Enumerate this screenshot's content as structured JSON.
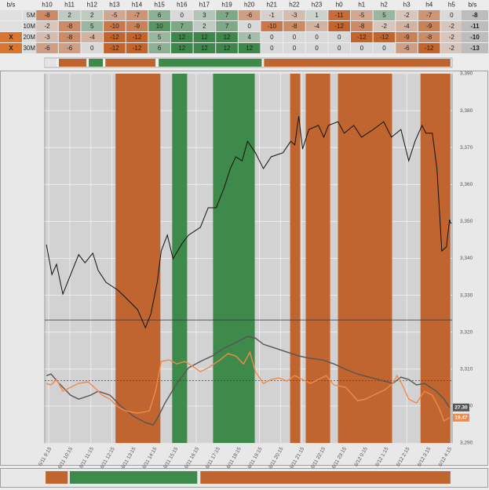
{
  "table": {
    "header": [
      "b/s",
      "h10",
      "h11",
      "h12",
      "h13",
      "h14",
      "h15",
      "h16",
      "h17",
      "h19",
      "h20",
      "h21",
      "h22",
      "h23",
      "h0",
      "h1",
      "h2",
      "h3",
      "h4",
      "h5",
      "b/s"
    ],
    "rows": [
      {
        "signal": null,
        "name": "5M",
        "values": [
          -8,
          2,
          2,
          -5,
          -7,
          6,
          0,
          3,
          7,
          -6,
          -1,
          -3,
          1,
          -11,
          -5,
          5,
          -2,
          -7,
          0
        ],
        "total": -8
      },
      {
        "signal": null,
        "name": "10M",
        "values": [
          -2,
          -8,
          5,
          -10,
          -9,
          10,
          7,
          2,
          7,
          0,
          -10,
          -8,
          -4,
          -12,
          -8,
          -2,
          -4,
          -9,
          -2
        ],
        "total": -11
      },
      {
        "signal": "X",
        "name": "20M",
        "values": [
          -3,
          -8,
          -4,
          -12,
          -12,
          5,
          12,
          12,
          12,
          4,
          0,
          0,
          0,
          0,
          -12,
          -12,
          -9,
          -8,
          -2
        ],
        "total": -10
      },
      {
        "signal": "X",
        "name": "30M",
        "values": [
          -6,
          -6,
          0,
          -12,
          -12,
          6,
          12,
          12,
          12,
          12,
          0,
          0,
          0,
          0,
          0,
          0,
          -6,
          -12,
          -2
        ],
        "total": -13
      }
    ]
  },
  "chart_data": {
    "type": "line",
    "xlim": [
      -0.19,
      19.15
    ],
    "xticks": [
      {
        "value": 0,
        "label": "6/11 9:15"
      },
      {
        "value": 1,
        "label": "6/11 10:15"
      },
      {
        "value": 2,
        "label": "6/11 11:15"
      },
      {
        "value": 3,
        "label": "6/11 12:15"
      },
      {
        "value": 4,
        "label": "6/11 13:15"
      },
      {
        "value": 5,
        "label": "6/11 14:15"
      },
      {
        "value": 6,
        "label": "6/11 15:15"
      },
      {
        "value": 7,
        "label": "6/11 16:15"
      },
      {
        "value": 8,
        "label": "6/11 17:15"
      },
      {
        "value": 9,
        "label": "6/11 18:15"
      },
      {
        "value": 10,
        "label": "6/11 19:15"
      },
      {
        "value": 11,
        "label": "6/11 20:15"
      },
      {
        "value": 12,
        "label": "6/11 21:15"
      },
      {
        "value": 13,
        "label": "6/11 22:15"
      },
      {
        "value": 14,
        "label": "6/11 23:15"
      },
      {
        "value": 15,
        "label": "6/12 0:15"
      },
      {
        "value": 16,
        "label": "6/12 1:15"
      },
      {
        "value": 17,
        "label": "6/12 2:15"
      },
      {
        "value": 18,
        "label": "6/12 3:15"
      },
      {
        "value": 19,
        "label": "6/12 4:15"
      }
    ],
    "ylim": [
      3290,
      3390
    ],
    "yticks": [
      {
        "value": 3290,
        "label": "3,290"
      },
      {
        "value": 3300,
        "label": "3,300"
      },
      {
        "value": 3310,
        "label": "3,310"
      },
      {
        "value": 3320,
        "label": "3,320"
      },
      {
        "value": 3330,
        "label": "3,330"
      },
      {
        "value": 3340,
        "label": "3,340"
      },
      {
        "value": 3350,
        "label": "3,350"
      },
      {
        "value": 3360,
        "label": "3,360"
      },
      {
        "value": 3370,
        "label": "3,370"
      },
      {
        "value": 3380,
        "label": "3,380"
      },
      {
        "value": 3390,
        "label": "3,390"
      }
    ],
    "y2lim": [
      0,
      284
    ],
    "grid": true,
    "bands": [
      {
        "start": 3.17,
        "end": 5.3,
        "color": "#c0652f"
      },
      {
        "start": 5.86,
        "end": 6.57,
        "color": "#3e8a4b"
      },
      {
        "start": 7.8,
        "end": 9.78,
        "color": "#3e8a4b"
      },
      {
        "start": 11.46,
        "end": 11.94,
        "color": "#c0652f"
      },
      {
        "start": 12.2,
        "end": 13.36,
        "color": "#c0652f"
      },
      {
        "start": 13.73,
        "end": 16.3,
        "color": "#c0652f"
      },
      {
        "start": 17.65,
        "end": 19.07,
        "color": "#c0652f"
      }
    ],
    "top_strip": [
      {
        "start": -0.19,
        "end": 0.37,
        "color": "#e4e4e4"
      },
      {
        "start": 0.48,
        "end": 1.79,
        "color": "#c0652f"
      },
      {
        "start": 1.9,
        "end": 2.57,
        "color": "#3e8a4b"
      },
      {
        "start": 2.69,
        "end": 5.07,
        "color": "#c0652f"
      },
      {
        "start": 5.22,
        "end": 10.11,
        "color": "#3e8a4b"
      },
      {
        "start": 10.22,
        "end": 19.07,
        "color": "#c0652f"
      }
    ],
    "bottom_strip": [
      {
        "start": -0.15,
        "end": 0.9,
        "color": "#c0652f"
      },
      {
        "start": 1.0,
        "end": 7.05,
        "color": "#3e8a4b"
      },
      {
        "start": 7.2,
        "end": 19.07,
        "color": "#c0652f"
      }
    ],
    "reference_lines": [
      {
        "value": 3323.3,
        "axis": "y",
        "color": "#333333",
        "dash": false
      },
      {
        "value": 48,
        "axis": "y2",
        "color": "#444444",
        "dash": true
      }
    ],
    "series": [
      {
        "color": "#111111",
        "axis": "y",
        "x": [
          -0.11,
          0.15,
          0.37,
          0.67,
          1.04,
          1.42,
          1.72,
          2.09,
          2.35,
          2.72,
          3.28,
          3.66,
          4.22,
          4.59,
          4.85,
          5.15,
          5.34,
          5.63,
          5.9,
          6.34,
          6.64,
          7.2,
          7.57,
          7.95,
          8.32,
          8.62,
          8.88,
          9.18,
          9.44,
          9.81,
          10.19,
          10.56,
          11.12,
          11.49,
          11.68,
          11.87,
          12.05,
          12.35,
          12.8,
          13.06,
          13.28,
          13.73,
          14.03,
          14.48,
          14.85,
          15.41,
          15.9,
          16.27,
          16.72,
          17.09,
          17.39,
          17.72,
          17.91,
          18.21,
          18.43,
          18.66,
          18.88,
          19.03,
          19.1
        ],
        "values": [
          3343.7,
          3335.6,
          3338.4,
          3330.3,
          3335.6,
          3341.0,
          3338.8,
          3341.4,
          3336.7,
          3333.5,
          3331.4,
          3329.3,
          3326.1,
          3321.2,
          3325.0,
          3333.5,
          3342.0,
          3346.3,
          3339.9,
          3344.1,
          3346.3,
          3348.4,
          3353.7,
          3353.7,
          3359.0,
          3364.3,
          3367.5,
          3366.4,
          3371.7,
          3368.6,
          3364.3,
          3367.5,
          3368.6,
          3371.7,
          3370.7,
          3378.5,
          3369.6,
          3374.9,
          3376.0,
          3372.8,
          3376.0,
          3377.0,
          3373.9,
          3376.0,
          3372.8,
          3374.9,
          3377.0,
          3372.8,
          3374.9,
          3366.4,
          3371.7,
          3376.0,
          3373.9,
          3373.9,
          3364.3,
          3342.0,
          3343.1,
          3350.5,
          3349.4
        ]
      },
      {
        "color": "#555555",
        "axis": "y2",
        "end_label": {
          "value": 27.3,
          "label": "27.30"
        },
        "x": [
          -0.11,
          0.11,
          0.49,
          1.04,
          1.42,
          1.98,
          2.35,
          2.91,
          3.47,
          4.03,
          4.59,
          4.96,
          5.15,
          5.52,
          6.08,
          6.64,
          7.2,
          7.76,
          8.32,
          8.88,
          9.44,
          9.81,
          10.19,
          10.75,
          11.31,
          11.87,
          12.43,
          12.99,
          13.54,
          14.1,
          14.66,
          15.22,
          15.78,
          16.34,
          16.72,
          17.09,
          17.46,
          17.84,
          18.4,
          18.77,
          19.03
        ],
        "values": [
          51.8,
          53.0,
          45.8,
          36.7,
          33.7,
          36.7,
          39.8,
          36.7,
          27.7,
          20.5,
          15.7,
          13.9,
          18.7,
          30.7,
          45.8,
          57.8,
          62.7,
          66.9,
          72.9,
          77.1,
          81.9,
          80.7,
          75.9,
          72.9,
          69.9,
          66.9,
          65.1,
          63.9,
          60.8,
          56.6,
          53.0,
          50.6,
          48.2,
          45.8,
          50.6,
          48.8,
          44.6,
          45.8,
          39.8,
          33.7,
          27.3
        ]
      },
      {
        "color": "#f08a4b",
        "axis": "y2",
        "end_label": {
          "value": 19.47,
          "label": "19.47"
        },
        "x": [
          -0.11,
          0.11,
          0.37,
          0.67,
          1.04,
          1.42,
          1.87,
          2.16,
          2.54,
          2.91,
          3.28,
          3.66,
          4.22,
          4.78,
          5.07,
          5.34,
          5.71,
          6.08,
          6.46,
          6.83,
          7.2,
          7.57,
          8.13,
          8.51,
          8.88,
          9.25,
          9.55,
          9.81,
          10.19,
          10.56,
          10.93,
          11.31,
          11.68,
          12.05,
          12.43,
          12.8,
          13.17,
          13.54,
          14.1,
          14.66,
          15.04,
          15.41,
          15.97,
          16.34,
          16.53,
          16.79,
          17.09,
          17.46,
          17.84,
          18.21,
          18.51,
          18.77,
          19.03
        ],
        "values": [
          45.8,
          44.6,
          48.8,
          39.8,
          42.8,
          45.8,
          47.0,
          42.8,
          36.7,
          33.7,
          27.7,
          24.7,
          22.9,
          24.7,
          39.8,
          62.7,
          63.9,
          60.8,
          62.7,
          59.0,
          54.8,
          57.8,
          63.9,
          68.7,
          66.9,
          60.8,
          69.9,
          54.8,
          45.8,
          48.8,
          50.0,
          47.6,
          51.8,
          48.8,
          45.8,
          48.8,
          51.8,
          44.6,
          42.8,
          32.5,
          33.7,
          36.7,
          41.0,
          45.8,
          51.8,
          44.6,
          33.7,
          30.7,
          39.8,
          36.7,
          27.7,
          16.9,
          19.47
        ]
      }
    ]
  }
}
